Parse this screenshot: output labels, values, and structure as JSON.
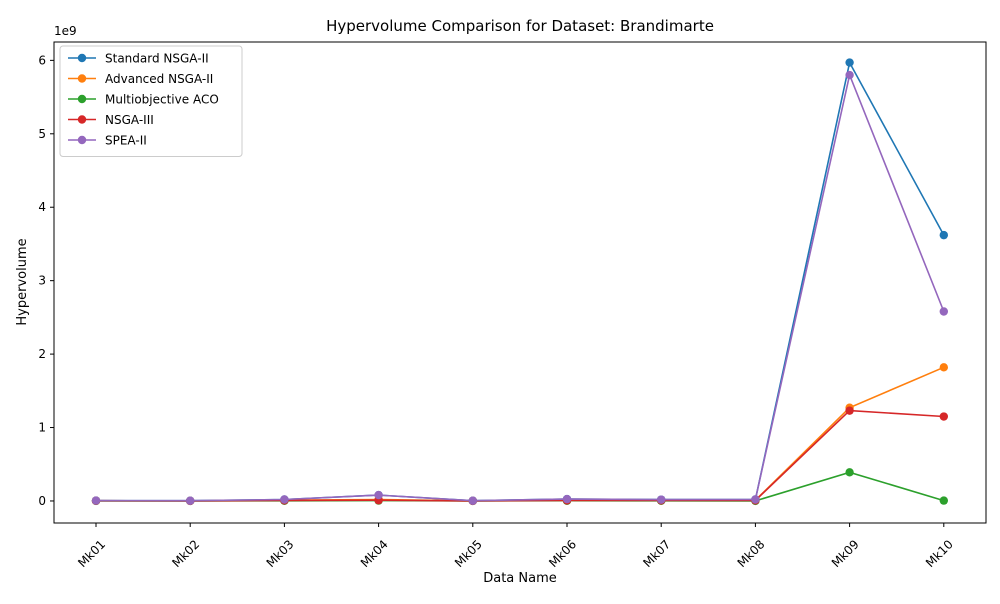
{
  "chart_data": {
    "type": "line",
    "title": "Hypervolume Comparison for Dataset: Brandimarte",
    "xlabel": "Data Name",
    "ylabel": "Hypervolume",
    "y_offset_label": "1e9",
    "categories": [
      "Mk01",
      "Mk02",
      "Mk03",
      "Mk04",
      "Mk05",
      "Mk06",
      "Mk07",
      "Mk08",
      "Mk09",
      "Mk10"
    ],
    "y_ticks": [
      0,
      1,
      2,
      3,
      4,
      5,
      6
    ],
    "ylim": [
      -0.3,
      6.25
    ],
    "grid": false,
    "legend_position": "top-left",
    "series": [
      {
        "name": "Standard NSGA-II",
        "color": "#1f77b4",
        "values": [
          0.005,
          0.003,
          0.02,
          0.08,
          0.003,
          0.025,
          0.018,
          0.02,
          5.97,
          3.62
        ]
      },
      {
        "name": "Advanced NSGA-II",
        "color": "#ff7f0e",
        "values": [
          0.003,
          0.001,
          0.01,
          0.02,
          0.001,
          0.01,
          0.01,
          0.01,
          1.27,
          1.82
        ]
      },
      {
        "name": "Multiobjective ACO",
        "color": "#2ca02c",
        "values": [
          0.001,
          0.0005,
          0.002,
          0.005,
          0.0005,
          0.003,
          0.002,
          0.001,
          0.39,
          0.005
        ]
      },
      {
        "name": "NSGA-III",
        "color": "#d62728",
        "values": [
          0.002,
          0.001,
          0.008,
          0.01,
          0.001,
          0.008,
          0.008,
          0.008,
          1.23,
          1.15
        ]
      },
      {
        "name": "SPEA-II",
        "color": "#9467bd",
        "values": [
          0.005,
          0.003,
          0.02,
          0.08,
          0.003,
          0.025,
          0.018,
          0.02,
          5.8,
          2.58
        ]
      }
    ]
  }
}
